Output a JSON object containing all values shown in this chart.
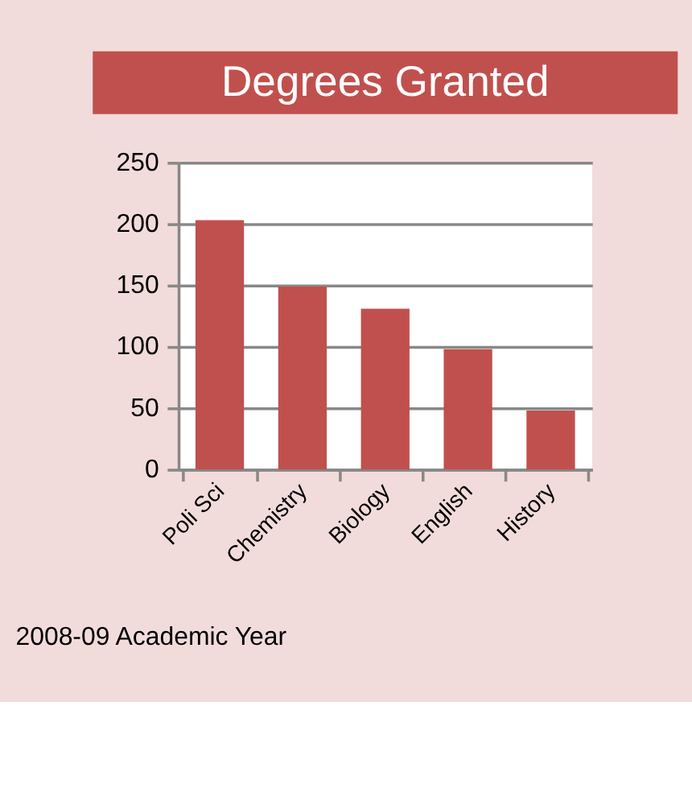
{
  "chart_data": {
    "type": "bar",
    "title": "Degrees Granted",
    "categories": [
      "Poli Sci",
      "Chemistry",
      "Biology",
      "English",
      "History"
    ],
    "values": [
      203,
      149,
      131,
      98,
      48
    ],
    "color": "#c0504d",
    "ylim": [
      0,
      250
    ],
    "yticks": [
      0,
      50,
      100,
      150,
      200,
      250
    ],
    "grid": "y",
    "annotations": [
      "2008-09 Academic Year"
    ]
  }
}
